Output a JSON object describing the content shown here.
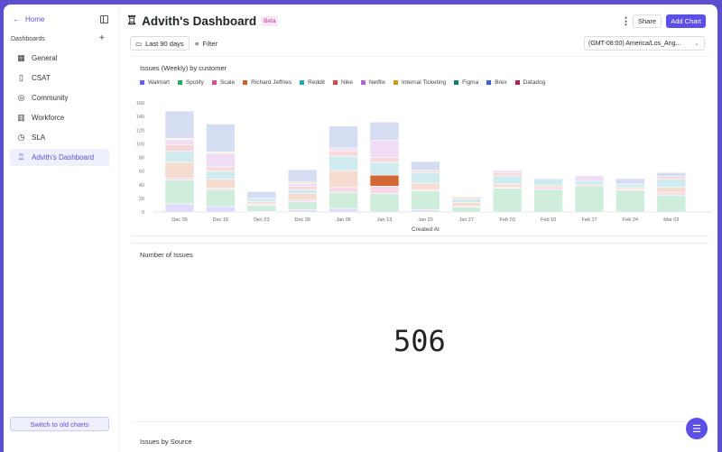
{
  "sidebar": {
    "home": "Home",
    "section": "Dashboards",
    "items": [
      {
        "label": "General",
        "icon": "grid-icon"
      },
      {
        "label": "CSAT",
        "icon": "clipboard-icon"
      },
      {
        "label": "Community",
        "icon": "community-icon"
      },
      {
        "label": "Workforce",
        "icon": "building-icon"
      },
      {
        "label": "SLA",
        "icon": "clock-icon"
      },
      {
        "label": "Advith's Dashboard",
        "icon": "cake-icon",
        "active": true
      }
    ],
    "switch_button": "Switch to old charts"
  },
  "header": {
    "title": "Advith's Dashboard",
    "badge": "Beta",
    "share": "Share",
    "add_chart": "Add Chart",
    "date_range": "Last 90 days",
    "filter": "Filter",
    "timezone": "(GMT-08:00) America/Los_Ang..."
  },
  "accent": "#5b4fe6",
  "cards": {
    "issues_number_title": "Number of Issues",
    "issues_number_value": "506",
    "source_title": "Issues by Source"
  },
  "chart_data": {
    "type": "bar",
    "stacked": true,
    "title": "Issues (Weekly) by customer",
    "xlabel": "Created At",
    "ylabel": "",
    "ylim": [
      0,
      160
    ],
    "yticks": [
      0,
      20,
      40,
      60,
      80,
      100,
      120,
      140,
      160
    ],
    "categories": [
      "Dec 09",
      "Dec 16",
      "Dec 23",
      "Dec 30",
      "Jan 06",
      "Jan 13",
      "Jan 20",
      "Jan 27",
      "Feb 03",
      "Feb 10",
      "Feb 17",
      "Feb 24",
      "Mar 03"
    ],
    "highlight": {
      "series": "Richard Jeffries",
      "category": "Jan 13"
    },
    "series": [
      {
        "name": "Walmart",
        "color": "#6b5cf0",
        "values": [
          12,
          8,
          1,
          3,
          5,
          0,
          3,
          0,
          0,
          0,
          0,
          0,
          0
        ]
      },
      {
        "name": "Spotify",
        "color": "#22b15a",
        "values": [
          35,
          25,
          9,
          12,
          24,
          27,
          28,
          7,
          35,
          33,
          38,
          32,
          25
        ]
      },
      {
        "name": "Scale",
        "color": "#db4f96",
        "values": [
          3,
          2,
          2,
          3,
          7,
          11,
          2,
          2,
          1,
          3,
          0,
          2,
          4
        ]
      },
      {
        "name": "Richard Jeffries",
        "color": "#cf5f27",
        "values": [
          23,
          13,
          3,
          9,
          25,
          16,
          9,
          5,
          5,
          3,
          2,
          2,
          7
        ]
      },
      {
        "name": "Reddit",
        "color": "#2aa5b8",
        "values": [
          16,
          12,
          5,
          6,
          21,
          19,
          16,
          5,
          12,
          10,
          6,
          5,
          12
        ]
      },
      {
        "name": "Nike",
        "color": "#d94848",
        "values": [
          10,
          6,
          0,
          5,
          8,
          7,
          3,
          3,
          5,
          0,
          0,
          0,
          4
        ]
      },
      {
        "name": "Netflix",
        "color": "#b763d6",
        "values": [
          7,
          20,
          0,
          4,
          4,
          25,
          0,
          0,
          3,
          1,
          7,
          0,
          0
        ]
      },
      {
        "name": "Internal Ticketing",
        "color": "#d19a16",
        "values": [
          2,
          2,
          0,
          2,
          0,
          0,
          0,
          0,
          0,
          0,
          0,
          0,
          0
        ]
      },
      {
        "name": "Figma",
        "color": "#137d72",
        "values": [
          0,
          0,
          0,
          0,
          0,
          0,
          0,
          0,
          0,
          0,
          0,
          0,
          0
        ]
      },
      {
        "name": "Brex",
        "color": "#3f64c9",
        "values": [
          40,
          41,
          10,
          18,
          32,
          27,
          13,
          0,
          0,
          0,
          0,
          8,
          6
        ]
      },
      {
        "name": "Datadog",
        "color": "#a8255c",
        "values": [
          0,
          0,
          0,
          0,
          0,
          0,
          0,
          0,
          0,
          0,
          0,
          0,
          0
        ]
      }
    ]
  }
}
